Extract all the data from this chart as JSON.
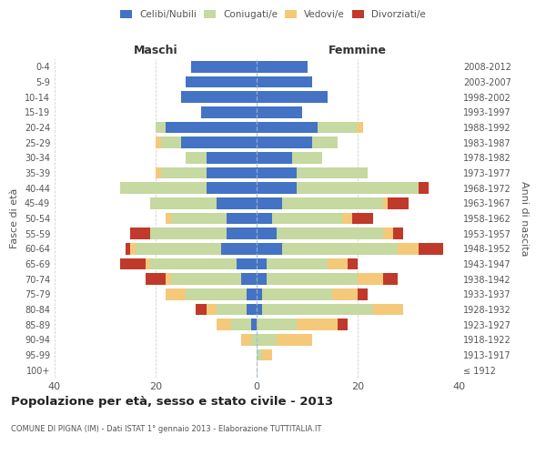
{
  "age_groups": [
    "100+",
    "95-99",
    "90-94",
    "85-89",
    "80-84",
    "75-79",
    "70-74",
    "65-69",
    "60-64",
    "55-59",
    "50-54",
    "45-49",
    "40-44",
    "35-39",
    "30-34",
    "25-29",
    "20-24",
    "15-19",
    "10-14",
    "5-9",
    "0-4"
  ],
  "birth_years": [
    "≤ 1912",
    "1913-1917",
    "1918-1922",
    "1923-1927",
    "1928-1932",
    "1933-1937",
    "1938-1942",
    "1943-1947",
    "1948-1952",
    "1953-1957",
    "1958-1962",
    "1963-1967",
    "1968-1972",
    "1973-1977",
    "1978-1982",
    "1983-1987",
    "1988-1992",
    "1993-1997",
    "1998-2002",
    "2003-2007",
    "2008-2012"
  ],
  "colors": {
    "celibe": "#4472C4",
    "coniugato": "#c5d9a0",
    "vedovo": "#f5c97a",
    "divorziato": "#c0392b"
  },
  "males": {
    "celibe": [
      0,
      0,
      0,
      1,
      2,
      2,
      3,
      4,
      7,
      6,
      6,
      8,
      10,
      10,
      10,
      15,
      18,
      11,
      15,
      14,
      13
    ],
    "coniugato": [
      0,
      0,
      1,
      4,
      6,
      12,
      14,
      17,
      17,
      15,
      11,
      13,
      17,
      9,
      4,
      4,
      2,
      0,
      0,
      0,
      0
    ],
    "vedovo": [
      0,
      0,
      2,
      3,
      2,
      4,
      1,
      1,
      1,
      0,
      1,
      0,
      0,
      1,
      0,
      1,
      0,
      0,
      0,
      0,
      0
    ],
    "divorziato": [
      0,
      0,
      0,
      0,
      2,
      0,
      4,
      5,
      1,
      4,
      0,
      0,
      0,
      0,
      0,
      0,
      0,
      0,
      0,
      0,
      0
    ]
  },
  "females": {
    "nubile": [
      0,
      0,
      0,
      0,
      1,
      1,
      2,
      2,
      5,
      4,
      3,
      5,
      8,
      8,
      7,
      11,
      12,
      9,
      14,
      11,
      10
    ],
    "coniugata": [
      0,
      1,
      4,
      8,
      22,
      14,
      18,
      12,
      23,
      21,
      14,
      20,
      24,
      14,
      6,
      5,
      8,
      0,
      0,
      0,
      0
    ],
    "vedova": [
      0,
      2,
      7,
      8,
      6,
      5,
      5,
      4,
      4,
      2,
      2,
      1,
      0,
      0,
      0,
      0,
      1,
      0,
      0,
      0,
      0
    ],
    "divorziata": [
      0,
      0,
      0,
      2,
      0,
      2,
      3,
      2,
      5,
      2,
      4,
      4,
      2,
      0,
      0,
      0,
      0,
      0,
      0,
      0,
      0
    ]
  },
  "xlim": 40,
  "title": "Popolazione per età, sesso e stato civile - 2013",
  "subtitle": "COMUNE DI PIGNA (IM) - Dati ISTAT 1° gennaio 2013 - Elaborazione TUTTITALIA.IT",
  "ylabel_left": "Fasce di età",
  "ylabel_right": "Anni di nascita",
  "xlabel_left": "Maschi",
  "xlabel_right": "Femmine",
  "bg_color": "#ffffff",
  "grid_color": "#cccccc",
  "axis_color": "#888888",
  "label_color": "#555555"
}
